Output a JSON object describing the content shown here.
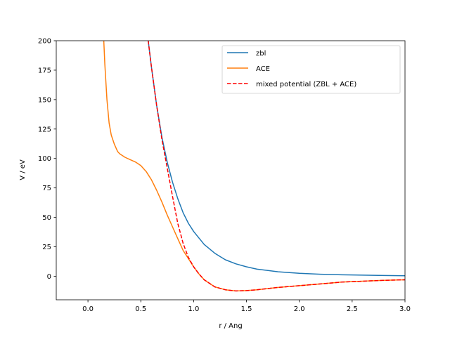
{
  "chart_data": {
    "type": "line",
    "xlabel": "r / Ang",
    "ylabel": "V / eV",
    "xlim": [
      -0.3,
      3.0
    ],
    "ylim": [
      -20,
      200
    ],
    "xticks": [
      "0.0",
      "0.5",
      "1.0",
      "1.5",
      "2.0",
      "2.5",
      "3.0"
    ],
    "yticks": [
      "0",
      "25",
      "50",
      "75",
      "100",
      "125",
      "150",
      "175",
      "200"
    ],
    "grid": false,
    "legend_position": "top-right",
    "series": [
      {
        "name": "zbl",
        "color": "#1f77b4",
        "style": "solid",
        "x": [
          0.57,
          0.6,
          0.65,
          0.7,
          0.75,
          0.8,
          0.85,
          0.9,
          0.95,
          1.0,
          1.1,
          1.2,
          1.3,
          1.4,
          1.5,
          1.6,
          1.8,
          2.0,
          2.2,
          2.4,
          2.6,
          2.8,
          3.0
        ],
        "y": [
          200,
          178,
          145,
          118,
          97,
          80,
          66,
          54,
          45,
          38,
          27,
          19.5,
          14,
          10.5,
          8,
          6,
          3.8,
          2.5,
          1.7,
          1.2,
          0.9,
          0.6,
          0.4
        ]
      },
      {
        "name": "ACE",
        "color": "#ff7f0e",
        "style": "solid",
        "x": [
          0.15,
          0.16,
          0.18,
          0.2,
          0.22,
          0.25,
          0.28,
          0.3,
          0.35,
          0.4,
          0.45,
          0.5,
          0.55,
          0.6,
          0.65,
          0.7,
          0.75,
          0.8,
          0.85,
          0.9,
          0.95,
          1.0,
          1.05,
          1.1,
          1.2,
          1.3,
          1.4,
          1.5,
          1.6,
          1.8,
          2.0,
          2.2,
          2.4,
          2.6,
          2.8,
          3.0
        ],
        "y": [
          200,
          180,
          150,
          130,
          120,
          112,
          106,
          104,
          101,
          99,
          97,
          94,
          89,
          82,
          73,
          63,
          52,
          42,
          32,
          22,
          15,
          8,
          2,
          -3,
          -9,
          -11.5,
          -12.5,
          -12.2,
          -11.5,
          -9.5,
          -8,
          -6.5,
          -5,
          -4.2,
          -3.5,
          -3
        ]
      },
      {
        "name": "mixed potential (ZBL + ACE)",
        "color": "#ff0000",
        "style": "dashed",
        "x": [
          0.57,
          0.6,
          0.65,
          0.7,
          0.75,
          0.8,
          0.85,
          0.9,
          0.95,
          1.0,
          1.05,
          1.1,
          1.2,
          1.3,
          1.4,
          1.5,
          1.6,
          1.8,
          2.0,
          2.2,
          2.4,
          2.6,
          2.8,
          3.0
        ],
        "y": [
          200,
          178,
          145,
          116,
          92,
          68,
          45,
          28,
          16,
          8,
          2,
          -3,
          -9,
          -11.5,
          -12.5,
          -12.2,
          -11.5,
          -9.5,
          -8,
          -6.5,
          -5,
          -4.2,
          -3.5,
          -3
        ]
      }
    ]
  }
}
